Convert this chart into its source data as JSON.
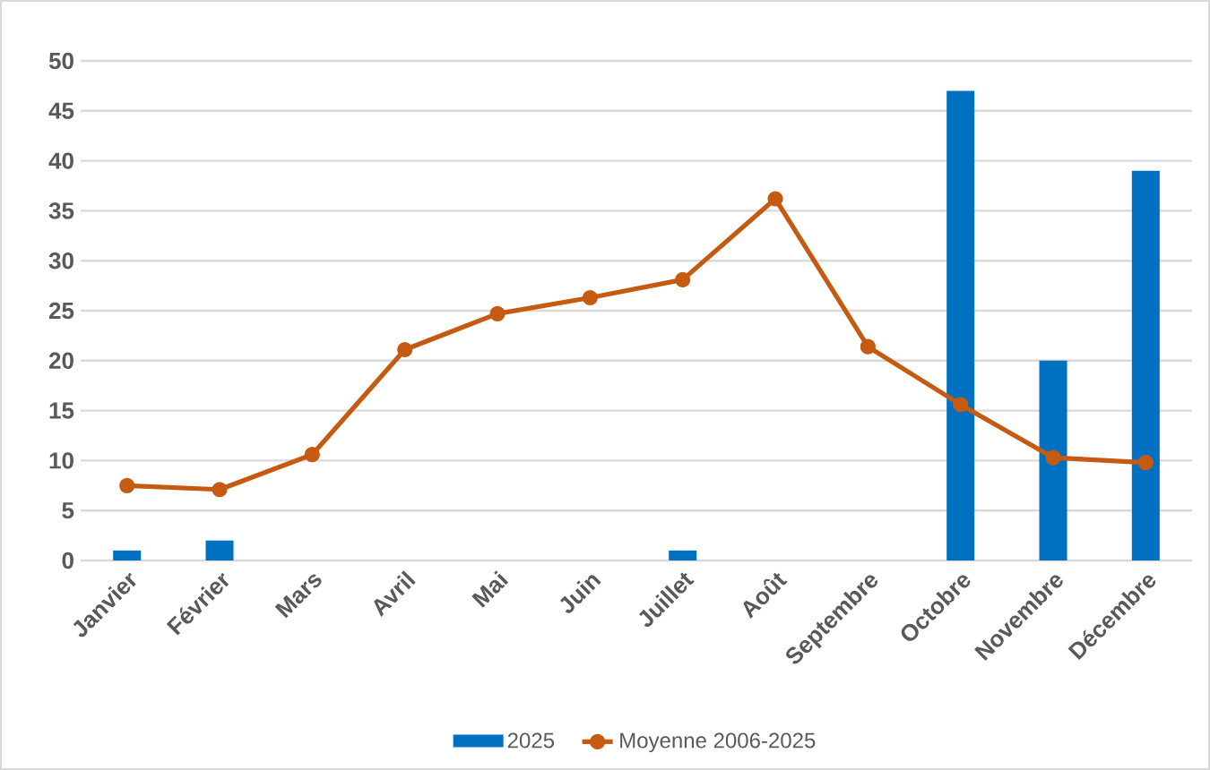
{
  "chart_data": {
    "type": "bar",
    "categories": [
      "Janvier",
      "Février",
      "Mars",
      "Avril",
      "Mai",
      "Juin",
      "Juillet",
      "Août",
      "Septembre",
      "Octobre",
      "Novembre",
      "Décembre"
    ],
    "series": [
      {
        "name": "2025",
        "color": "#0070c0",
        "values": [
          1,
          2,
          0,
          0,
          0,
          0,
          1,
          0,
          0,
          47,
          20,
          39
        ]
      },
      {
        "name": "Moyenne 2006-2025",
        "type": "line",
        "color": "#c55a11",
        "values": [
          7.5,
          7.1,
          10.6,
          21.1,
          24.7,
          26.3,
          28.1,
          36.2,
          21.4,
          15.6,
          10.3,
          9.8
        ]
      }
    ],
    "ylim": [
      0,
      50
    ],
    "yticks": [
      0,
      5,
      10,
      15,
      20,
      25,
      30,
      35,
      40,
      45,
      50
    ],
    "grid": "y",
    "legend": "bottom",
    "marker": "circle"
  }
}
